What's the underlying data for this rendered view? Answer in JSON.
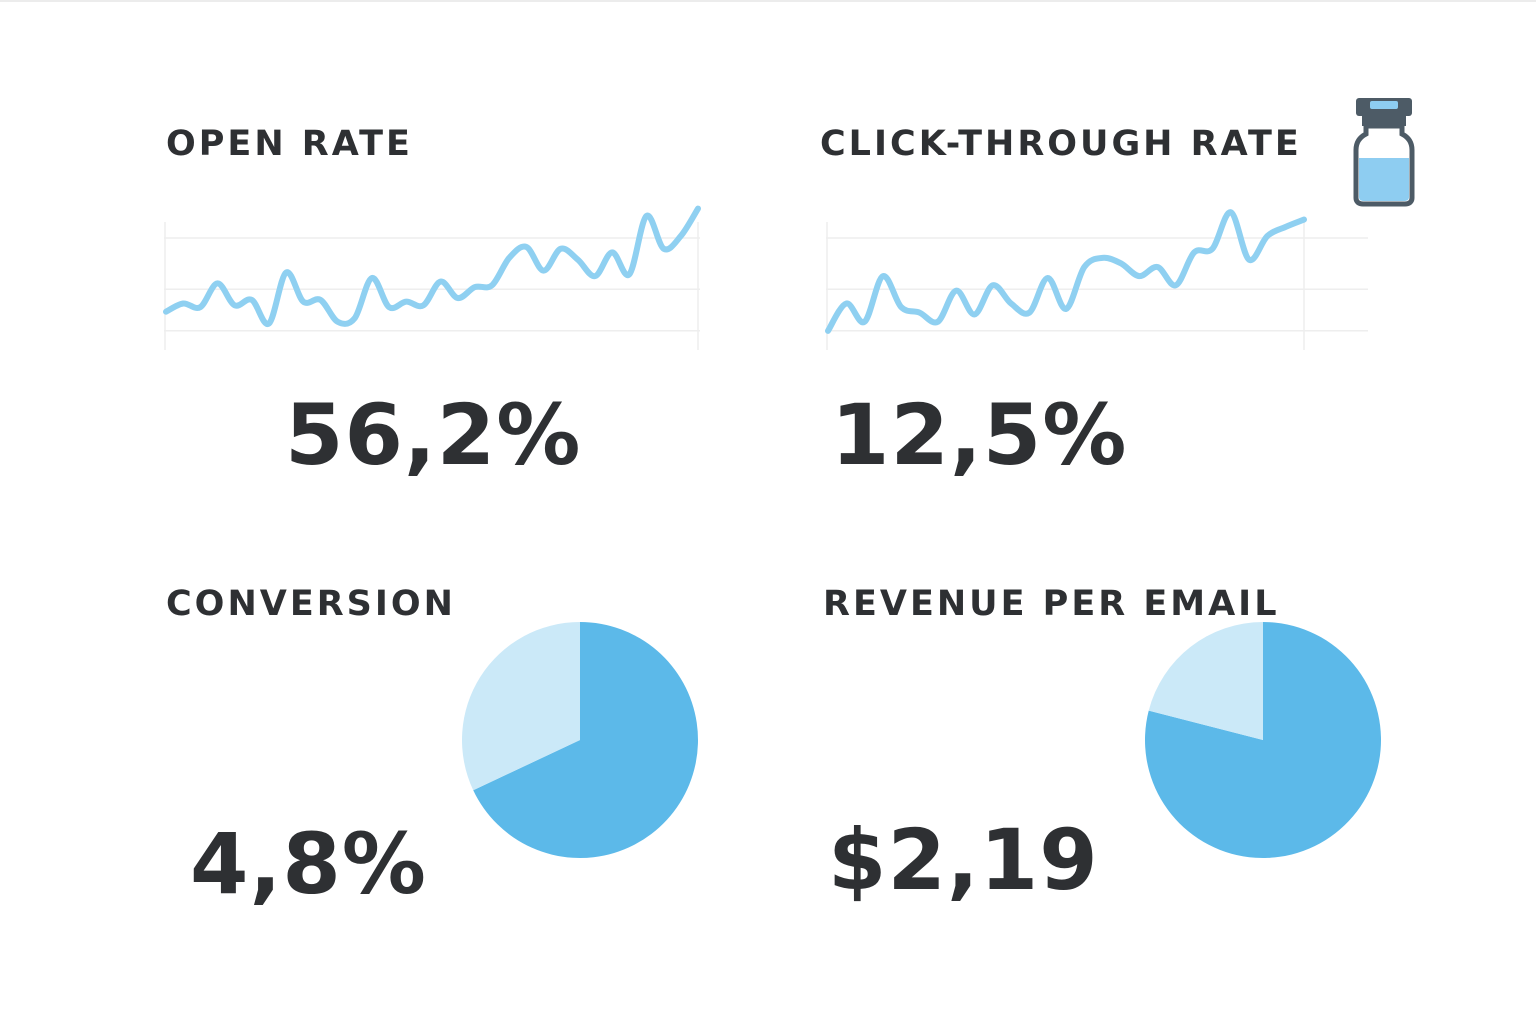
{
  "colors": {
    "line": "#8fd0f1",
    "pie_major": "#5cb9e9",
    "pie_minor": "#cbe9f8",
    "text": "#2e3033",
    "grid": "#eeeeee",
    "icon_outline": "#4d5b66",
    "icon_liquid": "#8ecdf1"
  },
  "icons": {
    "vial": "vial-icon"
  },
  "metrics": {
    "open_rate": {
      "label": "OPEN RATE",
      "value": "56,2%"
    },
    "ctr": {
      "label": "CLICK-THROUGH RATE",
      "value": "12,5%"
    },
    "conversion": {
      "label": "CONVERSION",
      "value": "4,8%"
    },
    "revenue": {
      "label": "REVENUE PER EMAIL",
      "value": "$2,19"
    }
  },
  "chart_data": [
    {
      "type": "line",
      "title": "OPEN RATE",
      "x": [
        0,
        1,
        2,
        3,
        4,
        5,
        6,
        7,
        8,
        9,
        10,
        11,
        12,
        13,
        14,
        15,
        16,
        17,
        18,
        19,
        20,
        21,
        22,
        23,
        24,
        25,
        26,
        27,
        28,
        29,
        30,
        31
      ],
      "values": [
        5.5,
        10,
        8,
        21,
        9,
        12,
        -1,
        27,
        11,
        12,
        0,
        2,
        24,
        8,
        11,
        9,
        22,
        13,
        19,
        20,
        35,
        41,
        28,
        40,
        34,
        25,
        38,
        26,
        58,
        40,
        47,
        62
      ],
      "ylim": [
        -10,
        70
      ],
      "grid": true
    },
    {
      "type": "line",
      "title": "CLICK-THROUGH RATE",
      "x": [
        0,
        1,
        2,
        3,
        4,
        5,
        6,
        7,
        8,
        9,
        10,
        11,
        12,
        13,
        14,
        15,
        16,
        17,
        18,
        19,
        20,
        21,
        22,
        23,
        24,
        25,
        26
      ],
      "values": [
        -5,
        10,
        0,
        25,
        8,
        5,
        0,
        17,
        4,
        20,
        10,
        5,
        24,
        7,
        30,
        35,
        32,
        25,
        30,
        20,
        38,
        40,
        60,
        34,
        47,
        52,
        56
      ],
      "ylim": [
        -10,
        70
      ],
      "grid": true
    },
    {
      "type": "pie",
      "title": "CONVERSION",
      "values": [
        68,
        32
      ]
    },
    {
      "type": "pie",
      "title": "REVENUE PER EMAIL",
      "values": [
        79,
        21
      ]
    }
  ]
}
